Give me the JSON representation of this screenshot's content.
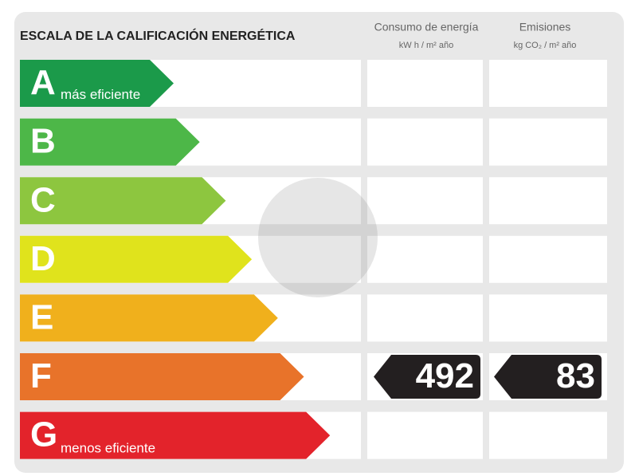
{
  "header": {
    "title": "ESCALA DE LA CALIFICACIÓN ENERGÉTICA",
    "columns": [
      {
        "name": "Consumo de energía",
        "unit": "kW h / m² año"
      },
      {
        "name": "Emisiones",
        "unit": "kg CO₂ / m² año"
      }
    ]
  },
  "rows": [
    {
      "letter": "A",
      "note": "más eficiente",
      "color": "#1b9a4a"
    },
    {
      "letter": "B",
      "color": "#4db748"
    },
    {
      "letter": "C",
      "color": "#8dc63f"
    },
    {
      "letter": "D",
      "color": "#e0e31c"
    },
    {
      "letter": "E",
      "color": "#f0b01c"
    },
    {
      "letter": "F",
      "color": "#e8732a",
      "consumption": 492,
      "emissions": 83
    },
    {
      "letter": "G",
      "note": "menos eficiente",
      "color": "#e3232b"
    }
  ]
}
